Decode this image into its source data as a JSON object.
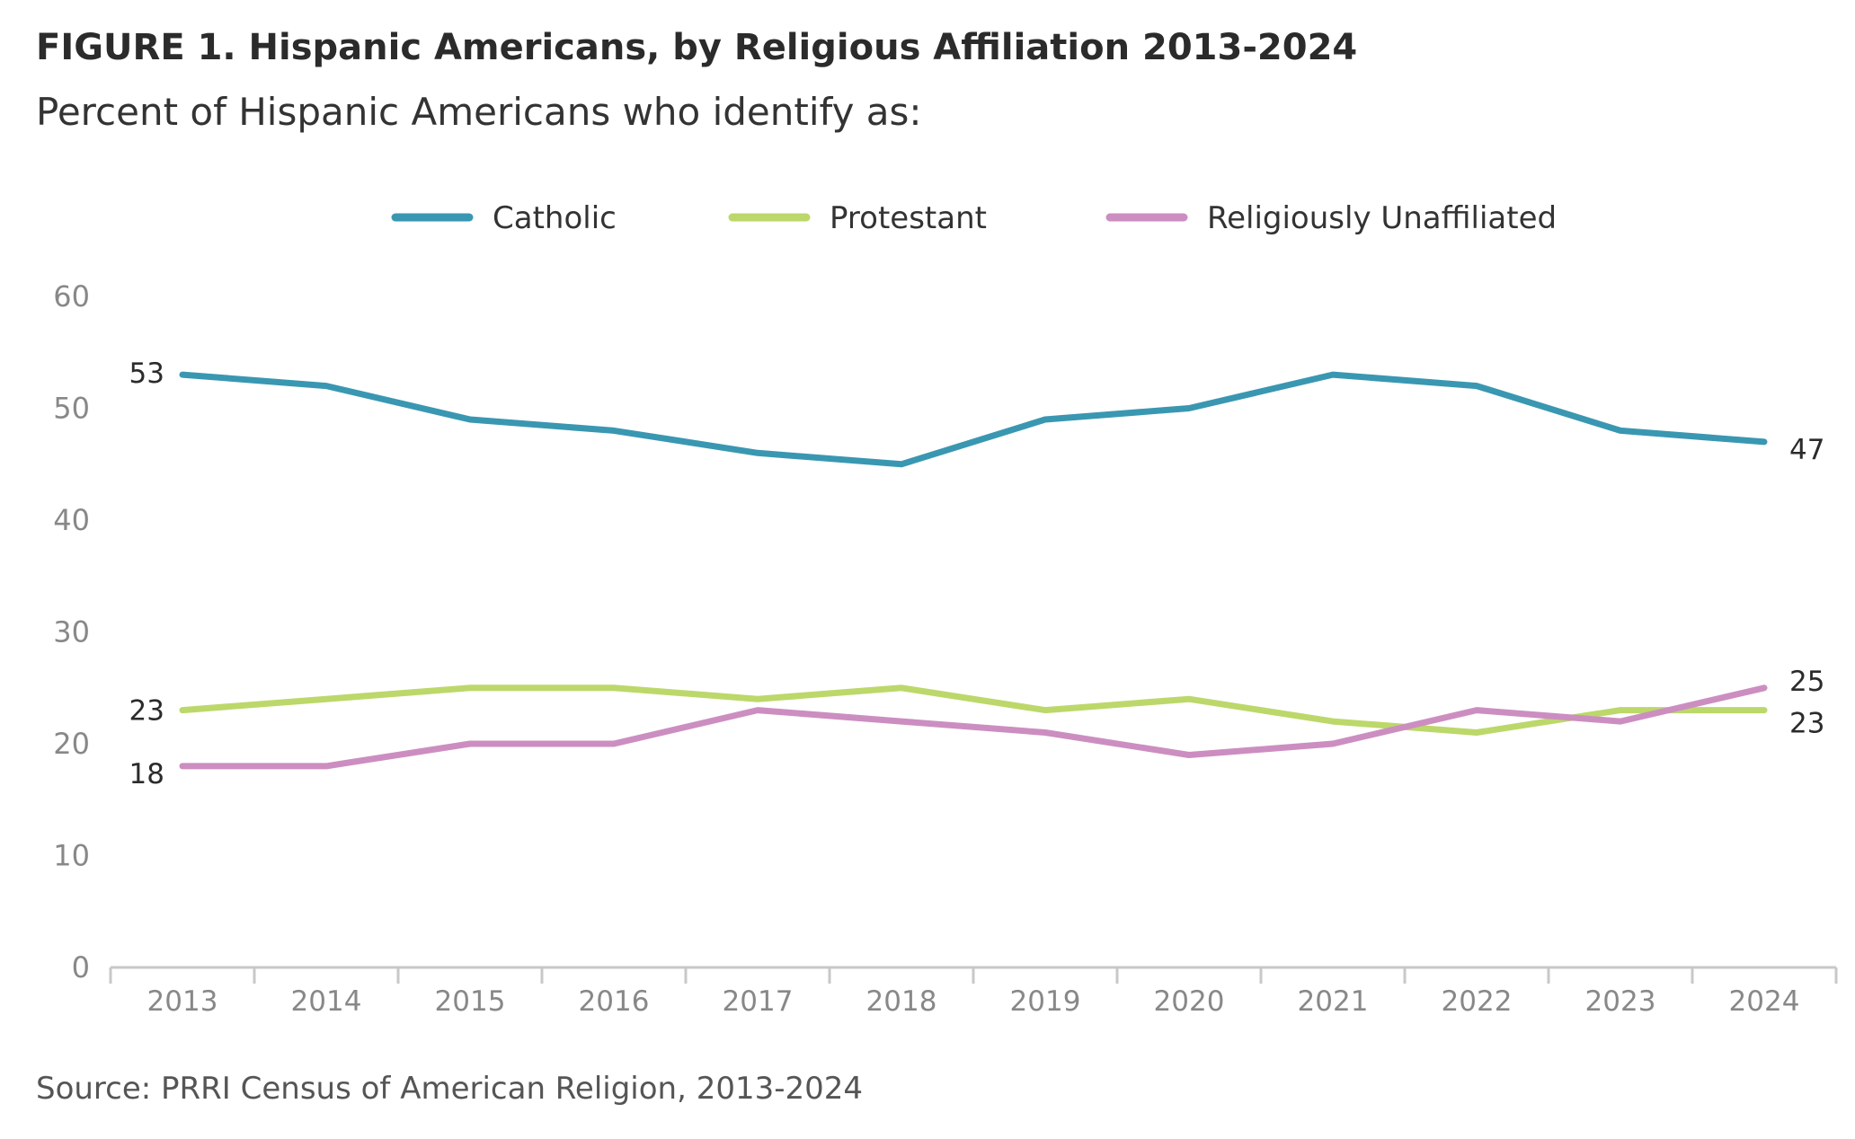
{
  "title": "FIGURE 1. Hispanic Americans, by Religious Affiliation 2013-2024",
  "subtitle": "Percent of Hispanic Americans who identify as:",
  "source": "Source: PRRI Census of American Religion, 2013-2024",
  "chart_data": {
    "type": "line",
    "x": [
      "2013",
      "2014",
      "2015",
      "2016",
      "2017",
      "2018",
      "2019",
      "2020",
      "2021",
      "2022",
      "2023",
      "2024"
    ],
    "yticks": [
      "0",
      "10",
      "20",
      "30",
      "40",
      "50",
      "60"
    ],
    "ylim": [
      0,
      60
    ],
    "grid": false,
    "legend_position": "top-center",
    "series": [
      {
        "name": "Catholic",
        "color": "#3a97b1",
        "values": [
          53,
          52,
          49,
          48,
          46,
          45,
          49,
          50,
          53,
          52,
          48,
          47
        ],
        "start_label": "53",
        "end_label": "47"
      },
      {
        "name": "Protestant",
        "color": "#bcd86a",
        "values": [
          23,
          24,
          25,
          25,
          24,
          25,
          23,
          24,
          22,
          21,
          23,
          23
        ],
        "start_label": "23",
        "end_label": "23"
      },
      {
        "name": "Religiously Unaffiliated",
        "color": "#cc8ec1",
        "values": [
          18,
          18,
          20,
          20,
          23,
          22,
          21,
          19,
          20,
          23,
          22,
          25
        ],
        "start_label": "18",
        "end_label": "25"
      }
    ]
  }
}
